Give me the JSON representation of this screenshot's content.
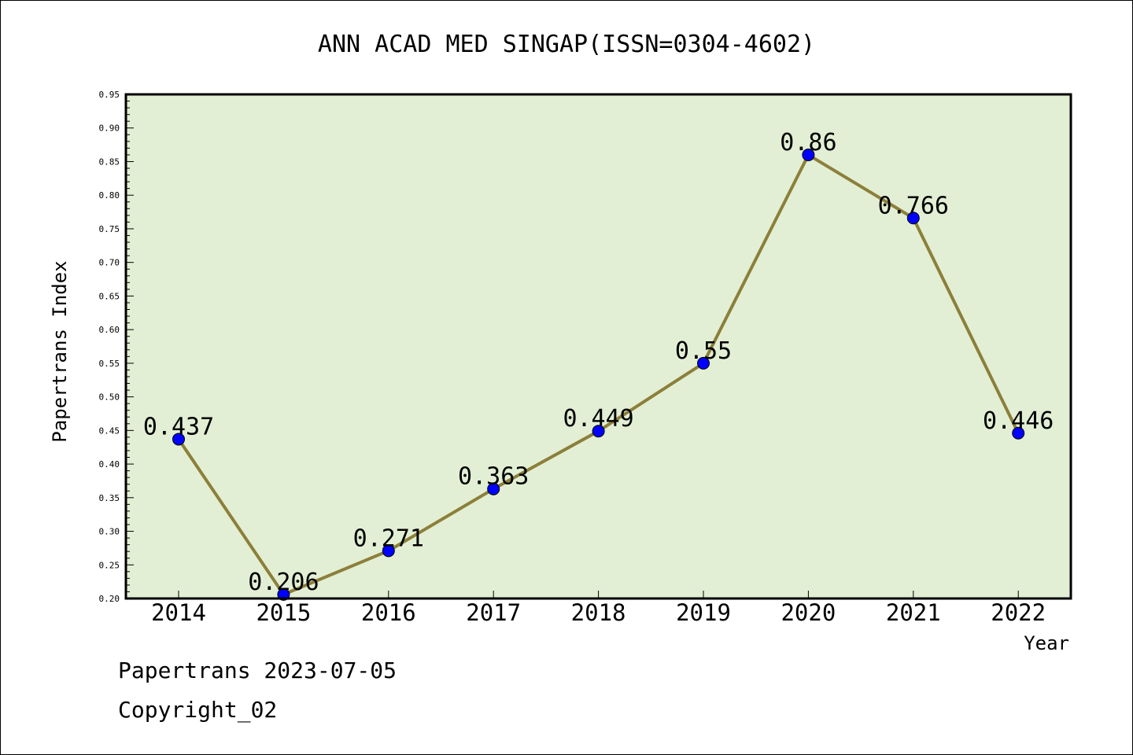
{
  "chart_data": {
    "type": "line",
    "title": "ANN ACAD MED SINGAP(ISSN=0304-4602)",
    "xlabel": "Year",
    "ylabel": "Papertrans Index",
    "categories": [
      "2014",
      "2015",
      "2016",
      "2017",
      "2018",
      "2019",
      "2020",
      "2021",
      "2022"
    ],
    "series": [
      {
        "values": [
          0.437,
          0.206,
          0.271,
          0.363,
          0.449,
          0.55,
          0.86,
          0.766,
          0.446
        ]
      }
    ],
    "data_labels": [
      "0.437",
      "0.206",
      "0.271",
      "0.363",
      "0.449",
      "0.55",
      "0.86",
      "0.766",
      "0.446"
    ],
    "ylim": [
      0.2,
      0.95
    ],
    "yticks": [
      "0.20",
      "0.25",
      "0.30",
      "0.35",
      "0.40",
      "0.45",
      "0.50",
      "0.55",
      "0.60",
      "0.65",
      "0.70",
      "0.75",
      "0.80",
      "0.85",
      "0.90",
      "0.95"
    ],
    "grid": false,
    "legend": "none",
    "colors": {
      "plot_background": "#e2efd4",
      "line": "#8c7f3a",
      "marker": "#0000ff"
    }
  },
  "footer": {
    "date_line": "Papertrans 2023-07-05",
    "copyright": "Copyright_02"
  }
}
